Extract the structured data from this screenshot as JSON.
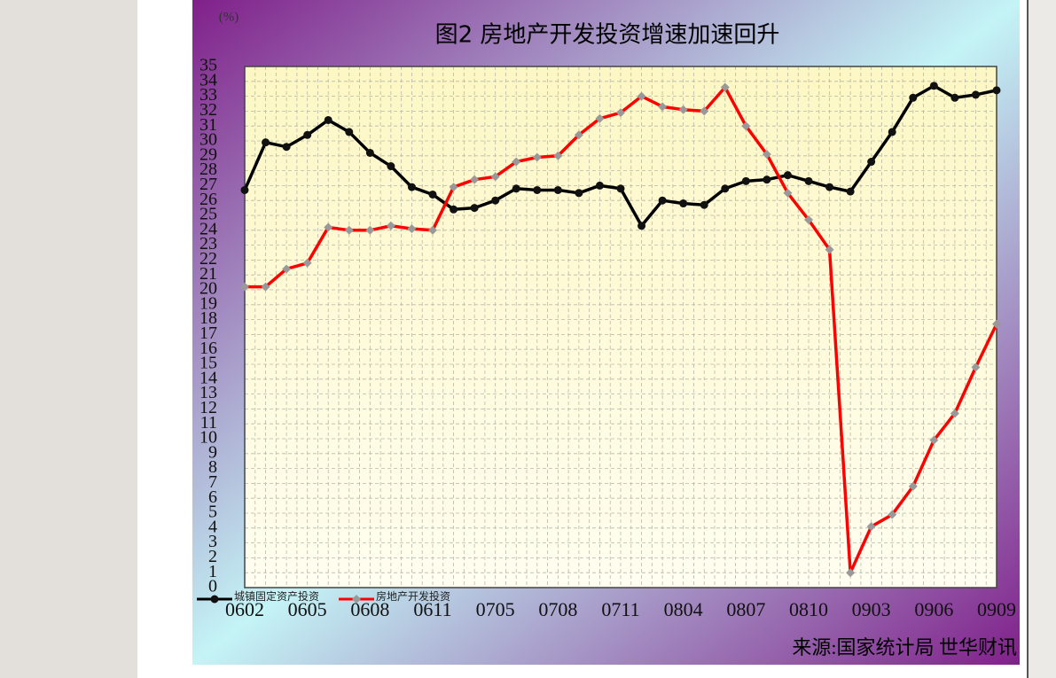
{
  "chart_data": {
    "type": "line",
    "title": "图2 房地产开发投资增速加速回升",
    "unit_label": "(%)",
    "source": "来源:国家统计局 世华财讯",
    "categories": [
      "0602",
      null,
      null,
      "0605",
      null,
      null,
      "0608",
      null,
      null,
      "0611",
      null,
      null,
      "0705",
      null,
      null,
      "0708",
      null,
      null,
      "0711",
      null,
      null,
      "0804",
      null,
      null,
      "0807",
      null,
      null,
      "0810",
      null,
      null,
      "0903",
      null,
      null,
      "0906",
      null,
      null,
      "0909"
    ],
    "series": [
      {
        "name": "城镇固定资产投资",
        "color": "#000000",
        "values": [
          26.7,
          29.9,
          29.6,
          30.4,
          31.4,
          30.6,
          29.2,
          28.3,
          26.9,
          26.4,
          25.4,
          25.5,
          26.0,
          26.8,
          26.7,
          26.7,
          26.5,
          27.0,
          26.8,
          24.3,
          26.0,
          25.8,
          25.7,
          26.8,
          27.3,
          27.4,
          27.7,
          27.3,
          26.9,
          26.6,
          28.6,
          30.6,
          32.9,
          33.7,
          32.9,
          33.1,
          33.4
        ]
      },
      {
        "name": "房地产开发投资",
        "color": "#ff0000",
        "values": [
          20.2,
          20.2,
          21.4,
          21.8,
          24.2,
          24.0,
          24.0,
          24.3,
          24.1,
          24.0,
          26.9,
          27.4,
          27.6,
          28.6,
          28.9,
          29.0,
          30.4,
          31.5,
          31.9,
          33.0,
          32.3,
          32.1,
          32.0,
          33.6,
          31.0,
          29.1,
          26.5,
          24.7,
          22.7,
          1.0,
          4.1,
          4.9,
          6.8,
          9.9,
          11.7,
          14.8,
          17.7
        ]
      }
    ],
    "ylim": [
      0,
      35
    ],
    "yticks": [
      0,
      1,
      2,
      3,
      4,
      5,
      6,
      7,
      8,
      9,
      10,
      11,
      12,
      13,
      14,
      15,
      16,
      17,
      18,
      19,
      20,
      21,
      22,
      23,
      24,
      25,
      26,
      27,
      28,
      29,
      30,
      31,
      32,
      33,
      34,
      35
    ],
    "grid": true
  }
}
